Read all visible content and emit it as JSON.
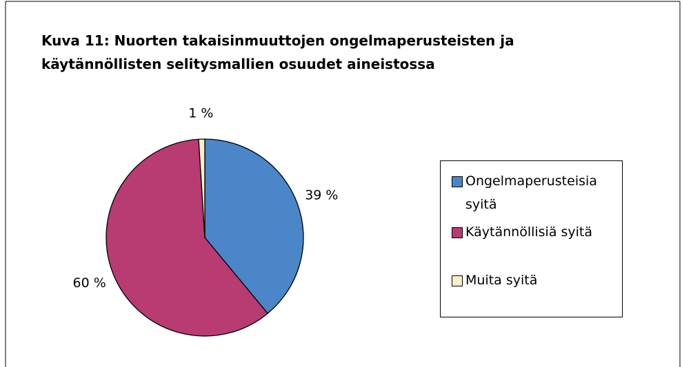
{
  "chart_data": {
    "type": "pie",
    "title": "Kuva 11: Nuorten takaisinmuuttojen ongelmaperusteisten ja käytännöllisten selitysmallien osuudet aineistossa",
    "categories": [
      "Ongelmaperusteisia syitä",
      "Käytännöllisiä syitä",
      "Muita syitä"
    ],
    "values": [
      39,
      60,
      1
    ],
    "value_labels": [
      "39 %",
      "60 %",
      "1 %"
    ],
    "colors": [
      "#4a86c8",
      "#b83b72",
      "#f6f1cc"
    ],
    "legend": "right"
  }
}
